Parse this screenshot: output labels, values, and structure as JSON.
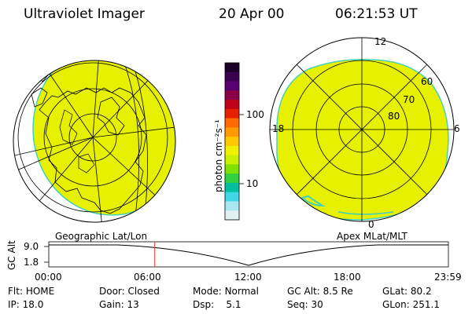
{
  "header": {
    "instrument": "Ultraviolet Imager",
    "date": "20 Apr 00",
    "time": "06:21:53 UT"
  },
  "left_panel": {
    "label": "Geographic Lat/Lon"
  },
  "right_panel": {
    "label": "Apex MLat/MLT",
    "mlt_labels": [
      "12",
      "18",
      "6",
      "0"
    ],
    "mlat_labels": [
      "60",
      "70",
      "80"
    ]
  },
  "colorbar": {
    "unit_label": "photon cm⁻²s⁻¹",
    "ticks": [
      "100",
      "10"
    ],
    "scale": "log",
    "colors": [
      "#1a0026",
      "#3c0050",
      "#5a0070",
      "#8a004a",
      "#c0001a",
      "#e62000",
      "#ff6a00",
      "#ff9a00",
      "#ffc800",
      "#f0f000",
      "#c8f000",
      "#80e000",
      "#30d040",
      "#00c0a0",
      "#40d8e8",
      "#a8e8f0",
      "#e0f0f4"
    ]
  },
  "altitude_plot": {
    "ylabel": "GC Alt",
    "yticks": [
      "9.0",
      "1.8"
    ],
    "xticks": [
      "00:00",
      "06:00",
      "12:00",
      "18:00",
      "23:59"
    ],
    "marker_time_hours": 6.365,
    "marker_color": "#e03020"
  },
  "status": {
    "row1": [
      {
        "key": "Flt:",
        "value": "HOME"
      },
      {
        "key": "Door:",
        "value": "Closed"
      },
      {
        "key": "Mode:",
        "value": "Normal"
      },
      {
        "key": "GC Alt:",
        "value": "8.5 Re"
      },
      {
        "key": "GLat:",
        "value": "80.2"
      }
    ],
    "row2": [
      {
        "key": "IP:",
        "value": "18.0"
      },
      {
        "key": "Gain:",
        "value": "13"
      },
      {
        "key": "Dsp:",
        "value": "5.1"
      },
      {
        "key": "Seq:",
        "value": "30"
      },
      {
        "key": "GLon:",
        "value": "251.1"
      }
    ]
  },
  "style": {
    "image_fill": "#e6f000",
    "image_edge": "#46d0b8"
  }
}
